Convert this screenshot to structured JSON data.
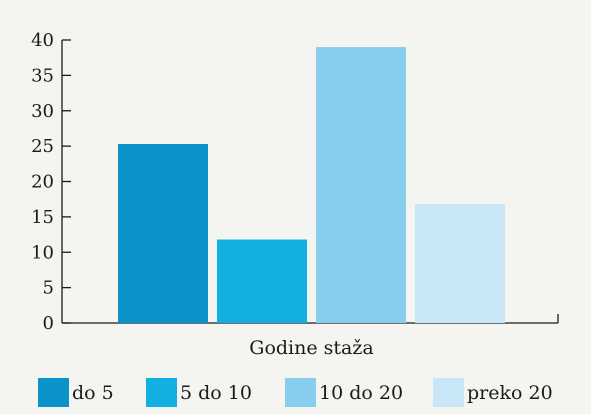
{
  "chart_data": {
    "type": "bar",
    "title": "",
    "xlabel": "Godine staža",
    "ylabel": "",
    "ylim": [
      0,
      40
    ],
    "yticks": [
      0,
      5,
      10,
      15,
      20,
      25,
      30,
      35,
      40
    ],
    "grid": false,
    "legend_position": "bottom",
    "series": [
      {
        "name": "do 5",
        "value": 25.3,
        "color": "#0a93c9"
      },
      {
        "name": "5 do 10",
        "value": 11.8,
        "color": "#12b0e2"
      },
      {
        "name": "10 do 20",
        "value": 39.0,
        "color": "#87cdee"
      },
      {
        "name": "preko 20",
        "value": 16.8,
        "color": "#c8e6f6"
      }
    ]
  },
  "colors": {
    "background": "#f4f5f1",
    "axis": "#1a1a1a"
  }
}
